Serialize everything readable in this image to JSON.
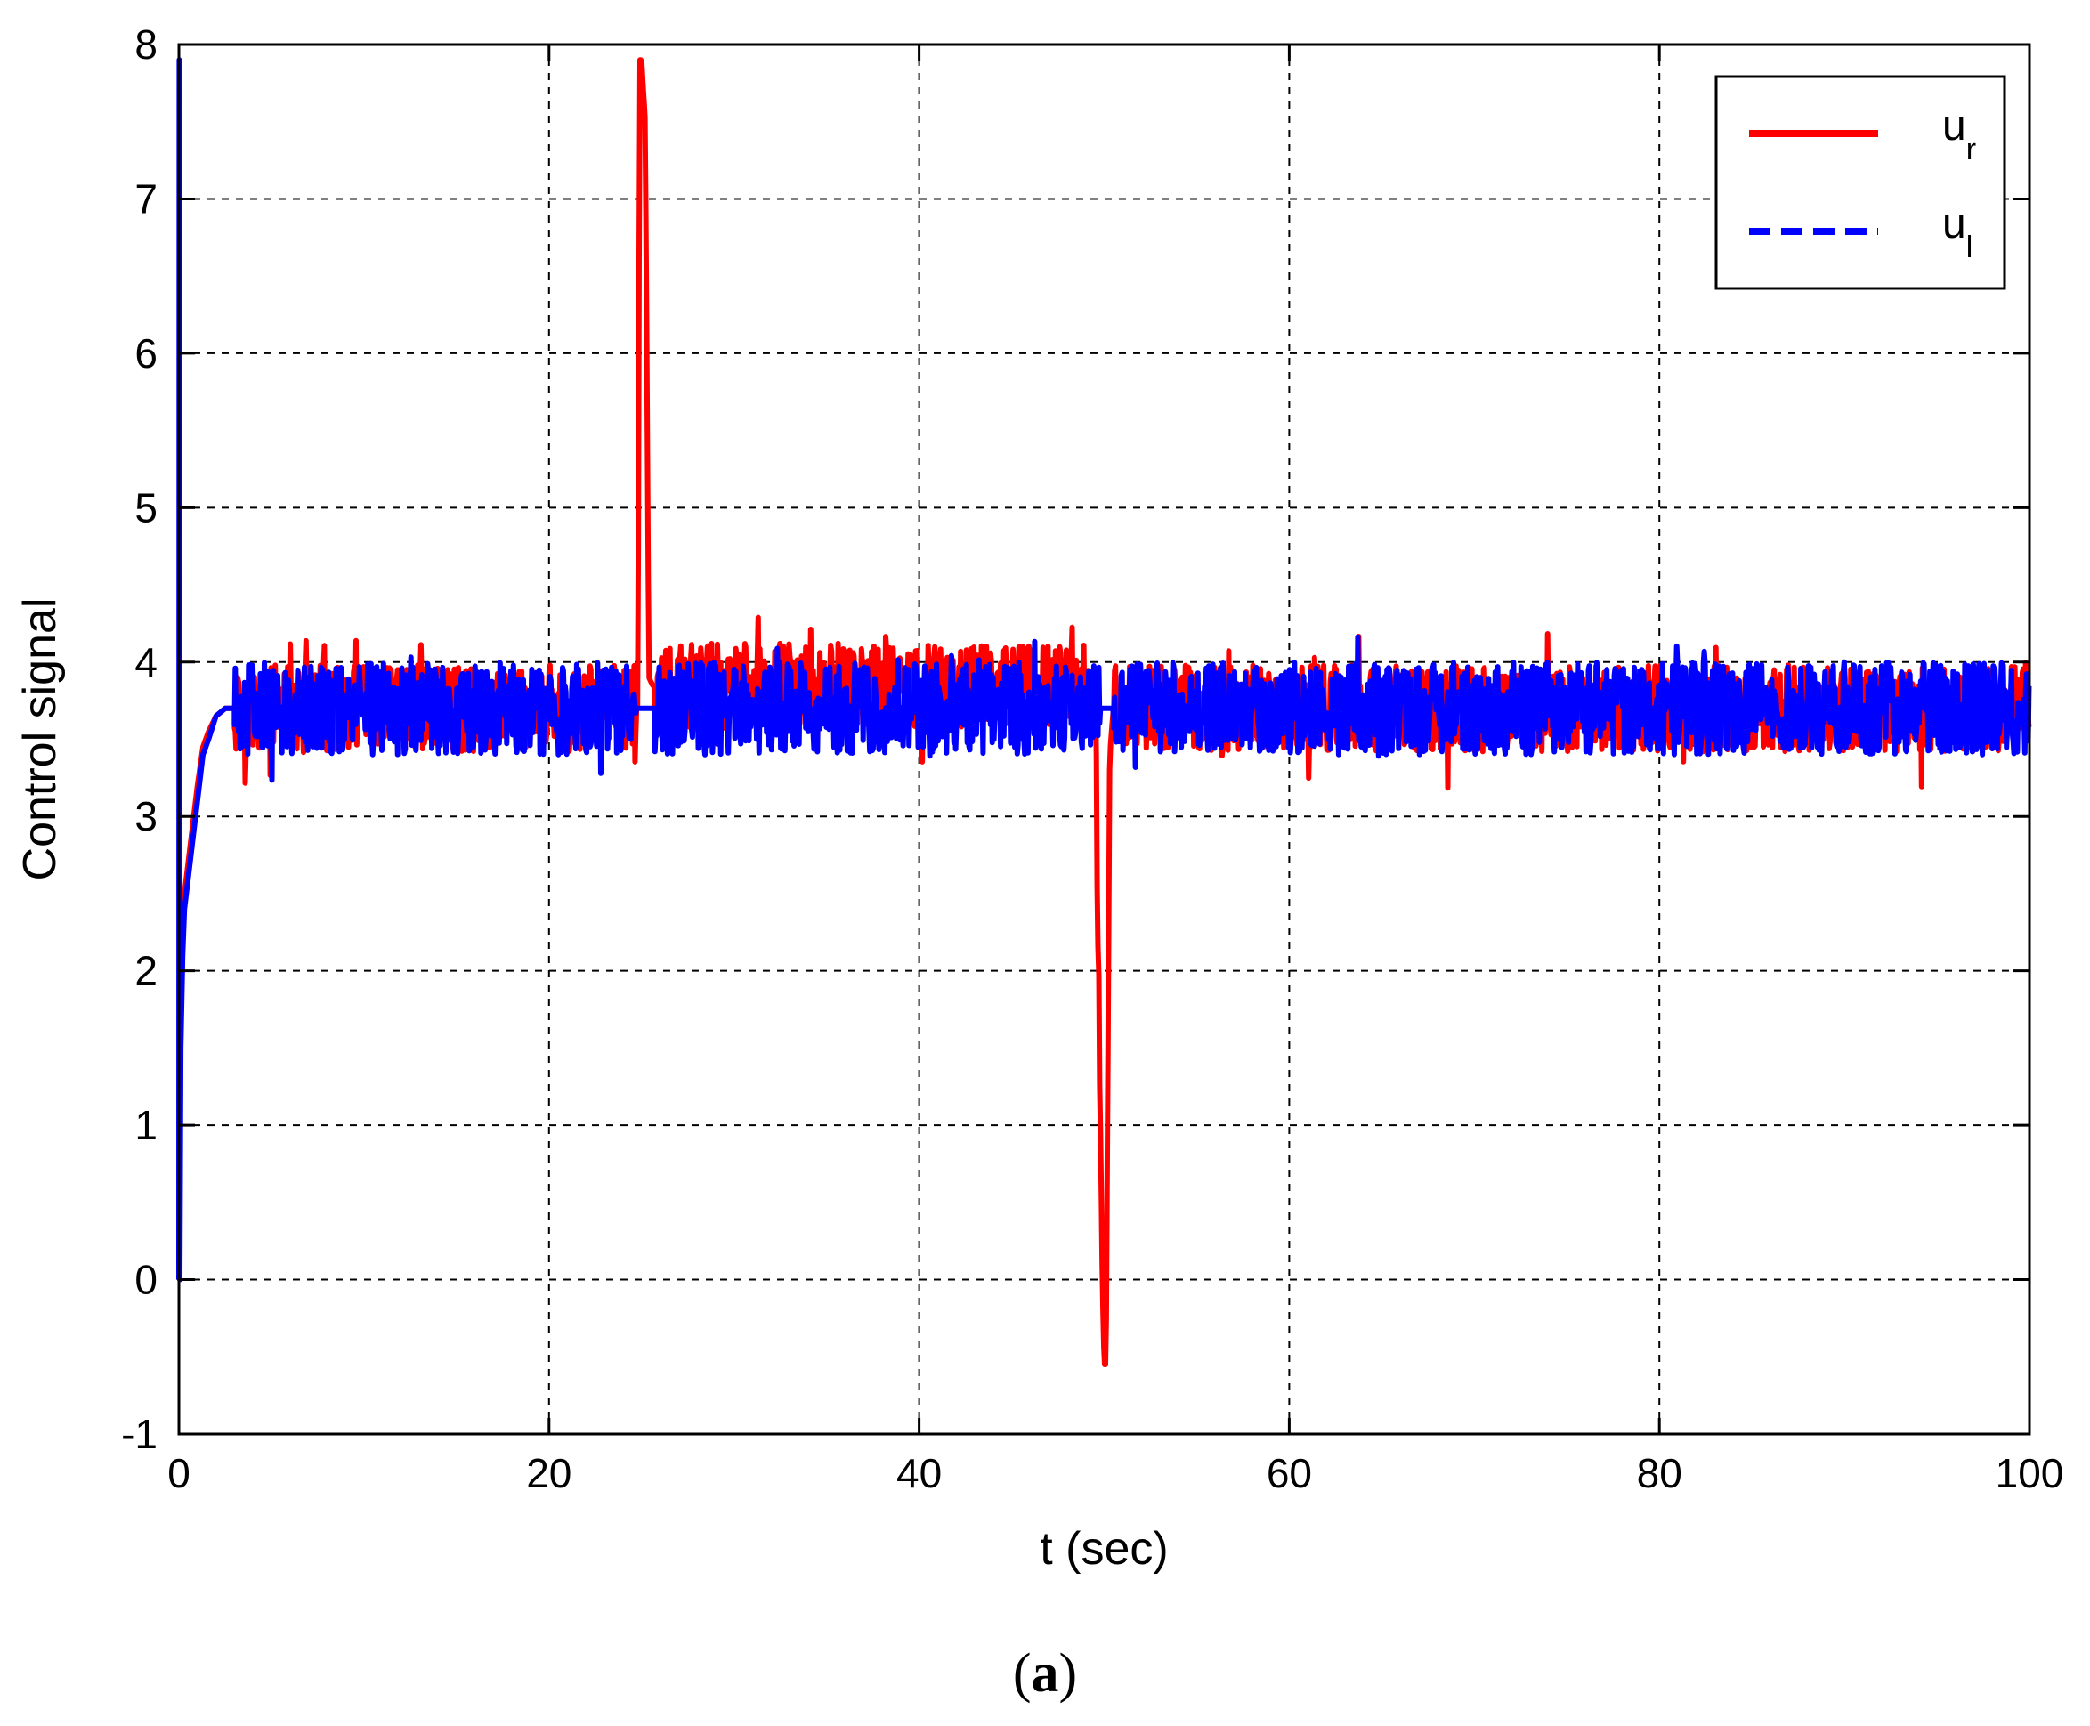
{
  "chart_data": {
    "type": "line",
    "xlabel": "t (sec)",
    "ylabel": "Control signal",
    "xlim": [
      0,
      100
    ],
    "ylim": [
      -1,
      8
    ],
    "xticks": [
      0,
      20,
      40,
      60,
      80,
      100
    ],
    "yticks": [
      -1,
      0,
      1,
      2,
      3,
      4,
      5,
      6,
      7,
      8
    ],
    "grid": true,
    "legend_position": "top-right",
    "series": [
      {
        "name": "u",
        "subscript": "r",
        "color": "#ff0000",
        "style": "solid",
        "x": [
          0,
          0.05,
          0.1,
          0.2,
          0.3,
          0.5,
          0.8,
          1.0,
          1.3,
          1.6,
          2.0,
          2.5,
          3,
          5,
          10,
          15,
          20,
          24.8,
          24.9,
          25.0,
          25.2,
          25.4,
          25.6,
          26,
          28,
          30,
          35,
          40,
          45,
          49.5,
          49.9,
          50.0,
          50.1,
          50.3,
          50.5,
          51,
          52,
          55,
          60,
          70,
          80,
          90,
          100
        ],
        "y": [
          0,
          0.8,
          1.6,
          2.2,
          2.5,
          2.7,
          3.0,
          3.2,
          3.45,
          3.55,
          3.65,
          3.7,
          3.7,
          3.7,
          3.7,
          3.7,
          3.7,
          3.7,
          7.9,
          7.9,
          7.5,
          3.9,
          3.85,
          3.8,
          3.85,
          3.85,
          3.85,
          3.85,
          3.85,
          3.85,
          0,
          -0.55,
          -0.55,
          3.4,
          3.7,
          3.7,
          3.7,
          3.7,
          3.7,
          3.7,
          3.7,
          3.7,
          3.7
        ]
      },
      {
        "name": "u",
        "subscript": "l",
        "color": "#0000ff",
        "style": "dashed",
        "x": [
          0,
          0.02,
          0.05,
          0.1,
          0.2,
          0.3,
          0.5,
          0.8,
          1.0,
          1.3,
          1.6,
          2.0,
          2.5,
          3,
          5,
          10,
          20,
          25,
          30,
          40,
          50,
          55,
          60,
          70,
          80,
          90,
          100
        ],
        "y": [
          0,
          7.9,
          0,
          1.5,
          2.1,
          2.4,
          2.6,
          2.9,
          3.1,
          3.4,
          3.5,
          3.65,
          3.7,
          3.7,
          3.7,
          3.7,
          3.7,
          3.7,
          3.7,
          3.7,
          3.7,
          3.7,
          3.7,
          3.7,
          3.7,
          3.7,
          3.7
        ]
      }
    ]
  },
  "caption": {
    "open": "(",
    "letter": "a",
    "close": ")"
  }
}
